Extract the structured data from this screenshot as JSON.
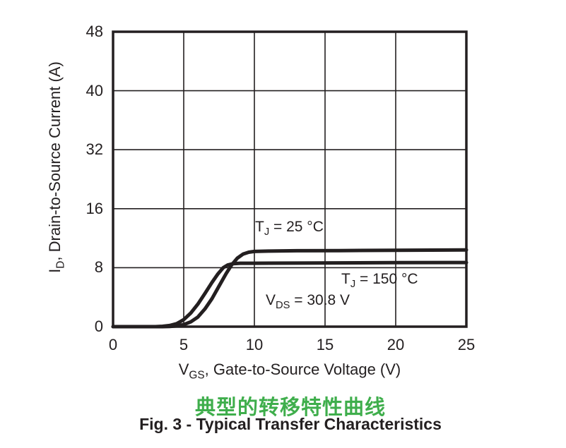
{
  "figure": {
    "y_axis": {
      "title": "I_{D}, Drain-to-Source Current (A)",
      "tick_labels": [
        "48",
        "40",
        "32",
        "16",
        "8",
        "0"
      ]
    },
    "x_axis": {
      "title": "V_{GS}, Gate-to-Source Voltage (V)",
      "tick_labels": [
        "0",
        "5",
        "10",
        "15",
        "20",
        "25"
      ]
    },
    "annotations": [
      {
        "id": "tj25",
        "text": "T_{J} = 25 °C"
      },
      {
        "id": "tj150",
        "text": "T_{J} = 150 °C"
      },
      {
        "id": "vds",
        "text": "V_{DS} = 30.8 V"
      }
    ]
  },
  "caption": {
    "chinese_title": "典型的转移特性曲线",
    "english_caption": "Fig. 3 - Typical Transfer Characteristics"
  },
  "colors": {
    "line": "#231f20",
    "grid": "#231f20",
    "frame": "#231f20",
    "text": "#231f20",
    "chinese_title_green": "#3FAE4C",
    "background": "#ffffff"
  },
  "chart_data": {
    "type": "line",
    "title": "Fig. 3 - Typical Transfer Characteristics",
    "subtitle": "典型的转移特性曲线",
    "xlabel": "VGS, Gate-to-Source Voltage (V)",
    "ylabel": "ID, Drain-to-Source Current (A)",
    "xlim": [
      0,
      25
    ],
    "x_ticks": [
      0,
      5,
      10,
      15,
      20,
      25
    ],
    "y_tick_labels_as_printed": [
      0,
      8,
      16,
      32,
      40,
      48
    ],
    "y_units_per_division": 8,
    "divisions": 5,
    "grid": true,
    "legend_position": "inline-annotations",
    "annotations": [
      "TJ = 25 °C",
      "TJ = 150 °C",
      "VDS = 30.8 V"
    ],
    "series": [
      {
        "name": "TJ = 25 °C",
        "points": [
          [
            0,
            0
          ],
          [
            3.5,
            0
          ],
          [
            4,
            0.03
          ],
          [
            4.5,
            0.1
          ],
          [
            5,
            0.28
          ],
          [
            5.5,
            0.65
          ],
          [
            6,
            1.3
          ],
          [
            6.5,
            2.4
          ],
          [
            7,
            3.8
          ],
          [
            7.5,
            5.5
          ],
          [
            8,
            7.2
          ],
          [
            8.4,
            8.4
          ],
          [
            8.8,
            9.3
          ],
          [
            9.2,
            9.85
          ],
          [
            9.6,
            10.1
          ],
          [
            10,
            10.2
          ],
          [
            11,
            10.25
          ],
          [
            13,
            10.3
          ],
          [
            16,
            10.32
          ],
          [
            20,
            10.35
          ],
          [
            25,
            10.4
          ]
        ]
      },
      {
        "name": "TJ = 150 °C",
        "points": [
          [
            0,
            0
          ],
          [
            3,
            0
          ],
          [
            3.5,
            0.05
          ],
          [
            4,
            0.15
          ],
          [
            4.5,
            0.4
          ],
          [
            5,
            0.95
          ],
          [
            5.5,
            1.85
          ],
          [
            6,
            3.05
          ],
          [
            6.5,
            4.5
          ],
          [
            7,
            6.0
          ],
          [
            7.4,
            7.1
          ],
          [
            7.8,
            8.0
          ],
          [
            8.1,
            8.35
          ],
          [
            8.5,
            8.55
          ],
          [
            9,
            8.6
          ],
          [
            10,
            8.6
          ],
          [
            13,
            8.62
          ],
          [
            16,
            8.65
          ],
          [
            20,
            8.68
          ],
          [
            25,
            8.7
          ]
        ]
      }
    ]
  }
}
